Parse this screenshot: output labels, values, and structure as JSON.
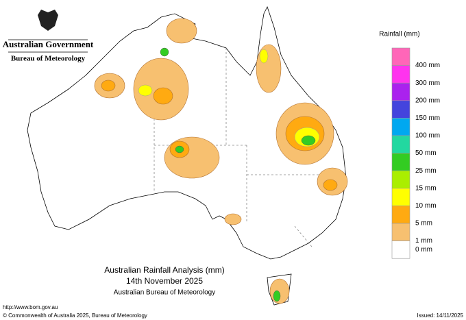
{
  "header": {
    "government": "Australian Government",
    "agency": "Bureau of Meteorology"
  },
  "legend": {
    "title": "Rainfall (mm)",
    "items": [
      {
        "label": "400 mm",
        "color": "#ff66b8"
      },
      {
        "label": "300 mm",
        "color": "#ff33ee"
      },
      {
        "label": "200 mm",
        "color": "#aa22ee"
      },
      {
        "label": "150 mm",
        "color": "#4444dd"
      },
      {
        "label": "100 mm",
        "color": "#00a8f0"
      },
      {
        "label": "50 mm",
        "color": "#22d8a0"
      },
      {
        "label": "25 mm",
        "color": "#33cc22"
      },
      {
        "label": "15 mm",
        "color": "#aaee00"
      },
      {
        "label": "10 mm",
        "color": "#ffff00"
      },
      {
        "label": "5 mm",
        "color": "#ffaa11"
      },
      {
        "label": "1 mm",
        "color": "#f7c070"
      },
      {
        "label": "0 mm",
        "color": "#ffffff"
      }
    ]
  },
  "map_title": {
    "line1": "Australian Rainfall Analysis (mm)",
    "line2": "14th November 2025",
    "line3": "Australian Bureau of Meteorology"
  },
  "footer": {
    "url": "http://www.bom.gov.au",
    "copyright": "© Commonwealth of Australia 2025, Bureau of Meteorology",
    "issued": "Issued: 14/11/2025"
  }
}
